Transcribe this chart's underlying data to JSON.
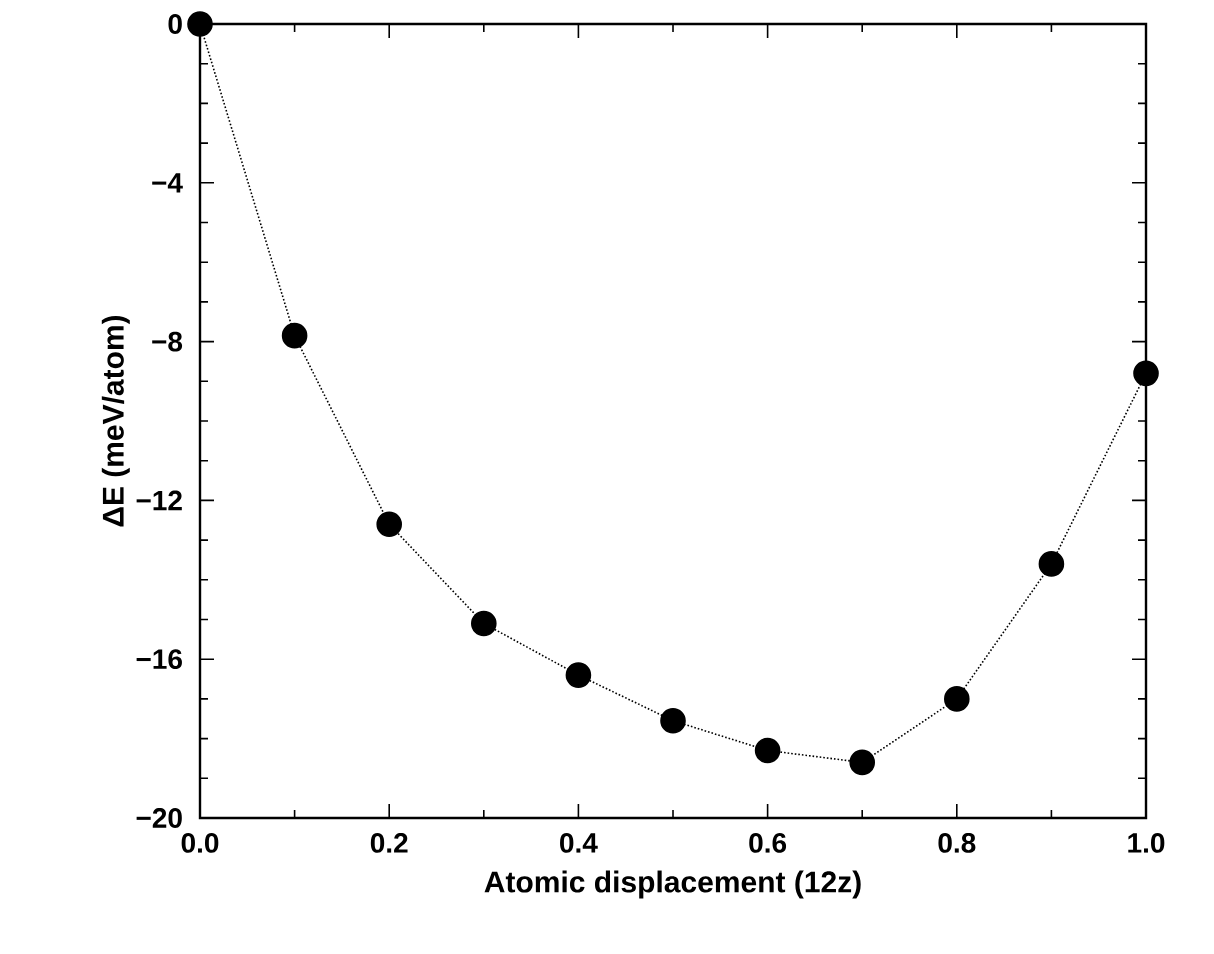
{
  "chart_data": {
    "type": "line",
    "xlabel": "Atomic displacement (12z)",
    "ylabel": "ΔE (meV/atom)",
    "x": [
      0.0,
      0.1,
      0.2,
      0.3,
      0.4,
      0.5,
      0.6,
      0.7,
      0.8,
      0.9,
      1.0
    ],
    "series": [
      {
        "color": "#000000",
        "values": [
          0,
          -7.85,
          -12.6,
          -15.1,
          -16.4,
          -17.55,
          -18.3,
          -18.6,
          -17.0,
          -13.6,
          -8.8
        ]
      }
    ],
    "xlim": [
      0,
      1
    ],
    "ylim": [
      -20,
      0
    ],
    "xticks": [
      {
        "value": 0,
        "label": "0.0"
      },
      {
        "value": 0.1,
        "label": null
      },
      {
        "value": 0.2,
        "label": "0.2"
      },
      {
        "value": 0.3,
        "label": null
      },
      {
        "value": 0.4,
        "label": "0.4"
      },
      {
        "value": 0.5,
        "label": null
      },
      {
        "value": 0.6,
        "label": "0.6"
      },
      {
        "value": 0.7,
        "label": null
      },
      {
        "value": 0.8,
        "label": "0.8"
      },
      {
        "value": 0.9,
        "label": null
      },
      {
        "value": 1,
        "label": "1.0"
      }
    ],
    "yticks": [
      {
        "value": -20,
        "label": "−20"
      },
      {
        "value": -19,
        "label": null
      },
      {
        "value": -18,
        "label": null
      },
      {
        "value": -17,
        "label": null
      },
      {
        "value": -16,
        "label": "−16"
      },
      {
        "value": -15,
        "label": null
      },
      {
        "value": -14,
        "label": null
      },
      {
        "value": -13,
        "label": null
      },
      {
        "value": -12,
        "label": "−12"
      },
      {
        "value": -11,
        "label": null
      },
      {
        "value": -10,
        "label": null
      },
      {
        "value": -9,
        "label": null
      },
      {
        "value": -8,
        "label": "−8"
      },
      {
        "value": -7,
        "label": null
      },
      {
        "value": -6,
        "label": null
      },
      {
        "value": -5,
        "label": null
      },
      {
        "value": -4,
        "label": "−4"
      },
      {
        "value": -3,
        "label": null
      },
      {
        "value": -2,
        "label": null
      },
      {
        "value": -1,
        "label": null
      },
      {
        "value": 0,
        "label": "0"
      }
    ],
    "marker": "circle",
    "line_style": "dotted"
  }
}
